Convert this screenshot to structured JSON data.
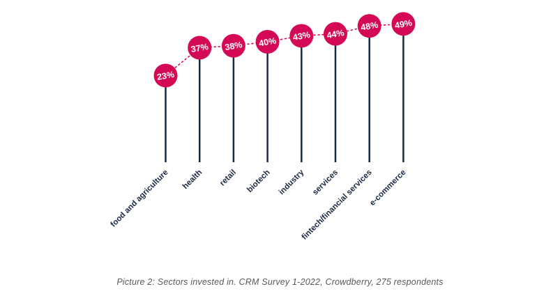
{
  "chart_data": {
    "type": "bar",
    "variant": "lollipop",
    "title": "",
    "xlabel": "",
    "ylabel": "",
    "grid": false,
    "legend": null,
    "categories": [
      "food and agriculture",
      "health",
      "retail",
      "biotech",
      "industry",
      "services",
      "fintech/financial services",
      "e-commerce"
    ],
    "values": [
      23,
      37,
      38,
      40,
      43,
      44,
      48,
      49
    ],
    "value_labels": [
      "23%",
      "37%",
      "38%",
      "40%",
      "43%",
      "44%",
      "48%",
      "49%"
    ],
    "value_unit": "%",
    "connector_style": "dotted"
  },
  "caption": "Picture 2: Sectors invested in. CRM Survey 1-2022, Crowdberry, 275 respondents",
  "colors": {
    "bubble": "#d40a56",
    "connector": "#d40a56",
    "stem": "#1a2943",
    "category_label": "#1a2943",
    "caption_text": "#58595b",
    "background": "#ffffff"
  }
}
